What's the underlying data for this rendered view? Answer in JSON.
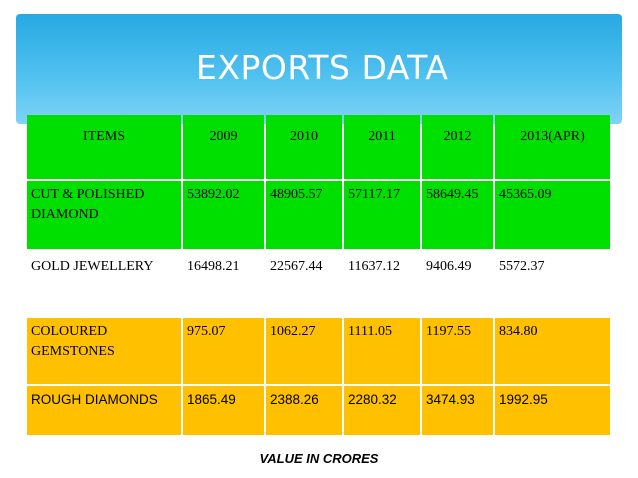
{
  "slide": {
    "title": "EXPORTS DATA",
    "footnote": "VALUE  IN CRORES"
  },
  "table": {
    "headers": [
      "ITEMS",
      "2009",
      "2010",
      "2011",
      "2012",
      "2013(APR)"
    ],
    "rows": [
      {
        "item": "CUT & POLISHED DIAMOND",
        "values": [
          "53892.02",
          "48905.57",
          "57117.17",
          "58649.45",
          "45365.09"
        ]
      },
      {
        "item": "GOLD JEWELLERY",
        "values": [
          "16498.21",
          "22567.44",
          "11637.12",
          "9406.49",
          "5572.37"
        ]
      },
      {
        "item": "COLOURED GEMSTONES",
        "values": [
          "975.07",
          "1062.27",
          "1111.05",
          "1197.55",
          "834.80"
        ]
      },
      {
        "item": "ROUGH DIAMONDS",
        "values": [
          "1865.49",
          "2388.26",
          "2280.32",
          "3474.93",
          "1992.95"
        ]
      }
    ]
  },
  "colors": {
    "banner": "#27a9e3",
    "green_rows": "#00e000",
    "yellow_rows": "#ffc000"
  }
}
